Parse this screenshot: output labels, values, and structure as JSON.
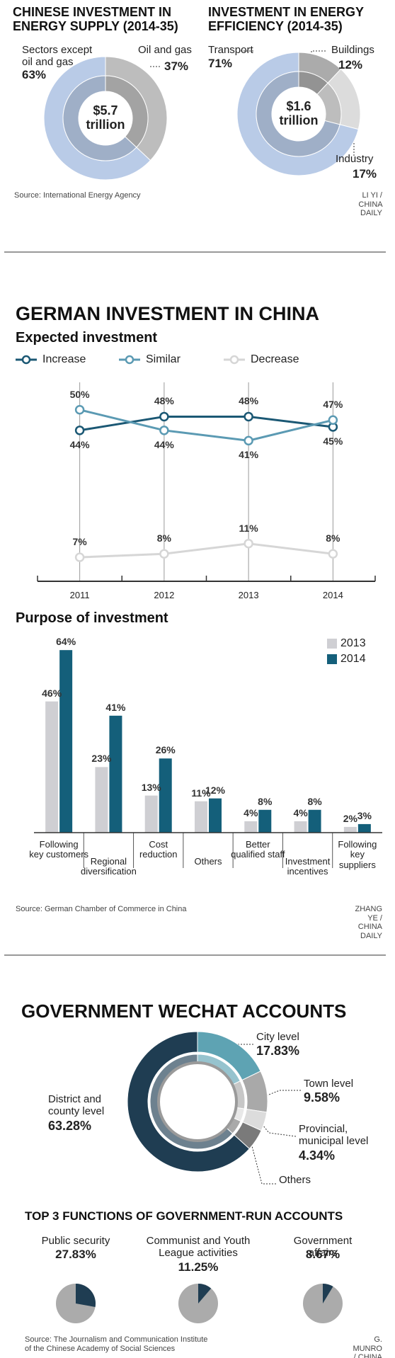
{
  "chart_data": [
    {
      "type": "donut",
      "title": "CHINESE INVESTMENT IN\nENERGY SUPPLY (2014-35)",
      "center_label": "$5.7\ntrillion",
      "categories": [
        "Oil and gas",
        "Sectors except\noil and gas"
      ],
      "values": [
        37,
        63
      ],
      "value_labels": [
        "37%",
        "63%"
      ],
      "colors": [
        "#bdbdbd",
        "#b9cbe7"
      ],
      "source": "Source: International Energy Agency"
    },
    {
      "type": "donut",
      "title": "INVESTMENT IN ENERGY\nEFFICIENCY (2014-35)",
      "center_label": "$1.6\ntrillion",
      "categories": [
        "Buildings",
        "Industry",
        "Transport"
      ],
      "values": [
        12,
        17,
        71
      ],
      "value_labels": [
        "12%",
        "17%",
        "71%"
      ],
      "colors": [
        "#ababab",
        "#dcdcdc",
        "#b9cbe7"
      ],
      "credit": "LI YI / CHINA DAILY"
    },
    {
      "type": "line",
      "section_title": "GERMAN INVESTMENT IN CHINA",
      "title": "Expected investment",
      "categories": [
        "2011",
        "2012",
        "2013",
        "2014"
      ],
      "ylim": [
        0,
        58
      ],
      "series": [
        {
          "name": "Increase",
          "color": "#1b5874",
          "values": [
            44,
            48,
            48,
            45
          ],
          "value_labels": [
            "44%",
            "48%",
            "48%",
            "45%"
          ]
        },
        {
          "name": "Similar",
          "color": "#5b9ab3",
          "values": [
            50,
            44,
            41,
            47
          ],
          "value_labels": [
            "50%",
            "44%",
            "41%",
            "47%"
          ]
        },
        {
          "name": "Decrease",
          "color": "#d6d6d6",
          "values": [
            7,
            8,
            11,
            8
          ],
          "value_labels": [
            "7%",
            "8%",
            "11%",
            "8%"
          ]
        }
      ]
    },
    {
      "type": "bar",
      "title": "Purpose of investment",
      "categories": [
        "Following\nkey customers",
        "Regional\ndiversification",
        "Cost\nreduction",
        "Others",
        "Better\nqualified staff",
        "Investment\nincentives",
        "Following\nkey suppliers"
      ],
      "ylim": [
        0,
        70
      ],
      "series": [
        {
          "name": "2013",
          "color": "#cfcfd3",
          "values": [
            46,
            23,
            13,
            11,
            4,
            4,
            2
          ],
          "value_labels": [
            "46%",
            "23%",
            "13%",
            "11%",
            "4%",
            "4%",
            "2%"
          ]
        },
        {
          "name": "2014",
          "color": "#145f7a",
          "values": [
            64,
            41,
            26,
            12,
            8,
            8,
            3
          ],
          "value_labels": [
            "64%",
            "41%",
            "26%",
            "12%",
            "8%",
            "8%",
            "3%"
          ]
        }
      ],
      "source": "Source: German Chamber of Commerce in China",
      "credit": "ZHANG YE / CHINA DAILY"
    },
    {
      "type": "donut",
      "title": "GOVERNMENT WECHAT ACCOUNTS",
      "categories": [
        "City level",
        "Town level",
        "Provincial,\nmunicipal level",
        "Others",
        "District and\ncounty level"
      ],
      "values": [
        17.83,
        9.58,
        4.34,
        4.97,
        63.28
      ],
      "value_labels": [
        "17.83%",
        "9.58%",
        "4.34%",
        null,
        "63.28%"
      ],
      "colors": [
        "#5ea3b3",
        "#a9a9a9",
        "#dcdcdc",
        "#7a7a7a",
        "#1f3d52"
      ]
    },
    {
      "type": "pie_grid",
      "title": "TOP 3 FUNCTIONS OF GOVERNMENT-RUN ACCOUNTS",
      "categories": [
        "Public security",
        "Communist and Youth\nLeague activities",
        "Government affairs"
      ],
      "values": [
        27.83,
        11.25,
        8.67
      ],
      "value_labels": [
        "27.83%",
        "11.25%",
        "8.67%"
      ],
      "color": "#1f3d52",
      "rest_color": "#ababab",
      "source": "Source: The Journalism and Communication Institute\nof the Chinese Academy of Social Sciences",
      "credit": "G. MUNRO / CHINA DAILY"
    }
  ]
}
